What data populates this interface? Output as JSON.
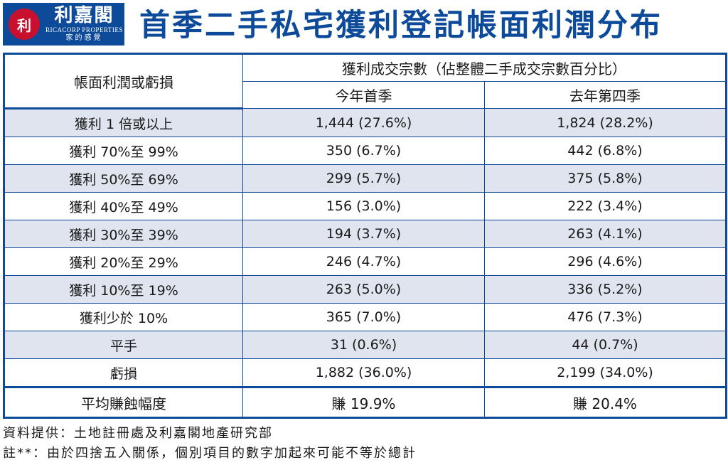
{
  "logo": {
    "seal_text": "利",
    "name_cn": "利嘉閣",
    "name_en": "RICACORP PROPERTIES",
    "tagline": "家的感覺"
  },
  "title": "首季二手私宅獲利登記帳面利潤分布",
  "table": {
    "row_header": "帳面利潤或虧損",
    "group_header": "獲利成交宗數（佔整體二手成交宗數百分比）",
    "col_current": "今年首季",
    "col_previous": "去年第四季",
    "rows": [
      {
        "label": "獲利 1 倍或以上",
        "current": "1,444 (27.6%)",
        "previous": "1,824 (28.2%)"
      },
      {
        "label": "獲利 70%至 99%",
        "current": "350 (6.7%)",
        "previous": "442 (6.8%)"
      },
      {
        "label": "獲利 50%至 69%",
        "current": "299 (5.7%)",
        "previous": "375 (5.8%)"
      },
      {
        "label": "獲利 40%至 49%",
        "current": "156 (3.0%)",
        "previous": "222 (3.4%)"
      },
      {
        "label": "獲利 30%至 39%",
        "current": "194 (3.7%)",
        "previous": "263 (4.1%)"
      },
      {
        "label": "獲利 20%至 29%",
        "current": "246 (4.7%)",
        "previous": "296 (4.6%)"
      },
      {
        "label": "獲利 10%至 19%",
        "current": "263 (5.0%)",
        "previous": "336 (5.2%)"
      },
      {
        "label": "獲利少於 10%",
        "current": "365 (7.0%)",
        "previous": "476 (7.3%)"
      },
      {
        "label": "平手",
        "current": "31 (0.6%)",
        "previous": "44 (0.7%)"
      },
      {
        "label": "虧損",
        "current": "1,882 (36.0%)",
        "previous": "2,199 (34.0%)"
      }
    ],
    "average": {
      "label": "平均賺蝕幅度",
      "current": "賺 19.9%",
      "previous": "賺 20.4%"
    }
  },
  "notes": {
    "source": "資料提供：土地註冊處及利嘉閣地產研究部",
    "footnote": "註**：由於四捨五入關係，個別項目的數字加起來可能不等於總計"
  },
  "colors": {
    "brand_blue": "#0d4a9a",
    "seal_red": "#c8102e",
    "stripe": "#dfe4ee"
  }
}
